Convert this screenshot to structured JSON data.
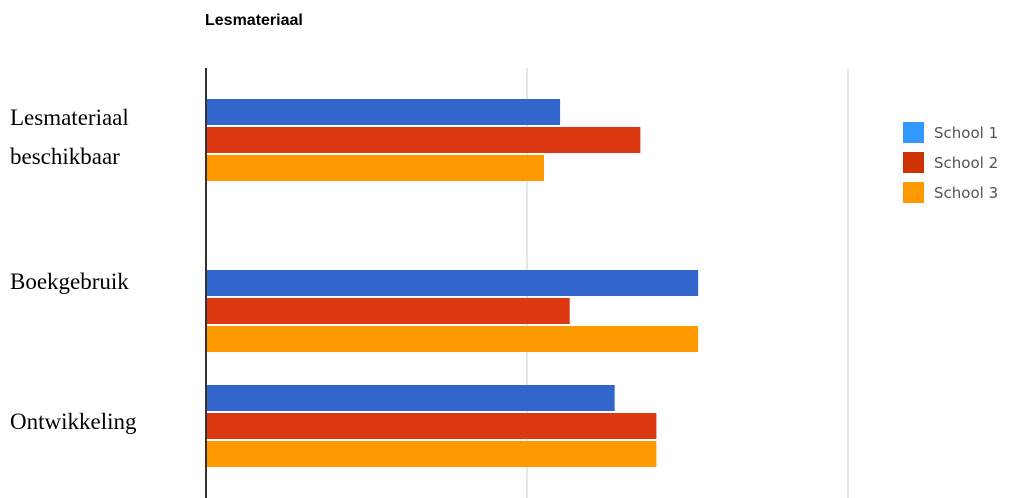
{
  "chart_data": {
    "type": "bar",
    "orientation": "horizontal",
    "title": "Lesmateriaal",
    "categories": [
      "Lesmateriaal beschikbaar",
      "Boekgebruik",
      "Ontwikkeling"
    ],
    "category_lines": [
      [
        "Lesmateriaal",
        "beschikbaar"
      ],
      [
        "Boekgebruik"
      ],
      [
        "Ontwikkeling"
      ]
    ],
    "series": [
      {
        "name": "School 1",
        "color": "#3366cc",
        "values": [
          1.1,
          1.53,
          1.27
        ]
      },
      {
        "name": "School 2",
        "color": "#dc3912",
        "values": [
          1.35,
          1.13,
          1.4
        ]
      },
      {
        "name": "School 3",
        "color": "#ff9900",
        "values": [
          1.05,
          1.53,
          1.4
        ]
      }
    ],
    "xlim": [
      0,
      2
    ],
    "gridlines": [
      1,
      2
    ],
    "legend_position": "right",
    "legend_colors": [
      "#3399ff",
      "#cc3300",
      "#ff9900"
    ]
  }
}
